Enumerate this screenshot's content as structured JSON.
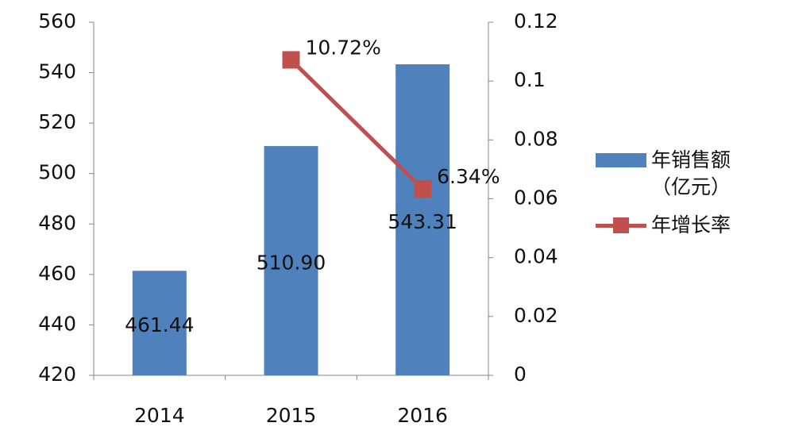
{
  "chart_data": {
    "type": "bar-line",
    "categories": [
      "2014",
      "2015",
      "2016"
    ],
    "series": [
      {
        "name": "年销售额（亿元）",
        "type": "bar",
        "color": "#4f81bd",
        "values": [
          461.44,
          510.9,
          543.31
        ],
        "value_labels": [
          "461.44",
          "510.90",
          "543.31"
        ]
      },
      {
        "name": "年增长率",
        "type": "line",
        "axis": "y2",
        "color": "#c0504d",
        "values": [
          null,
          0.1072,
          0.0634
        ],
        "value_labels": [
          null,
          "10.72%",
          "6.34%"
        ]
      }
    ],
    "ylim": [
      420,
      560
    ],
    "yticks": [
      420,
      440,
      460,
      480,
      500,
      520,
      540,
      560
    ],
    "y2lim": [
      0,
      0.12
    ],
    "y2ticks": [
      0,
      0.02,
      0.04,
      0.06,
      0.08,
      0.1,
      0.12
    ],
    "legend": "right"
  }
}
